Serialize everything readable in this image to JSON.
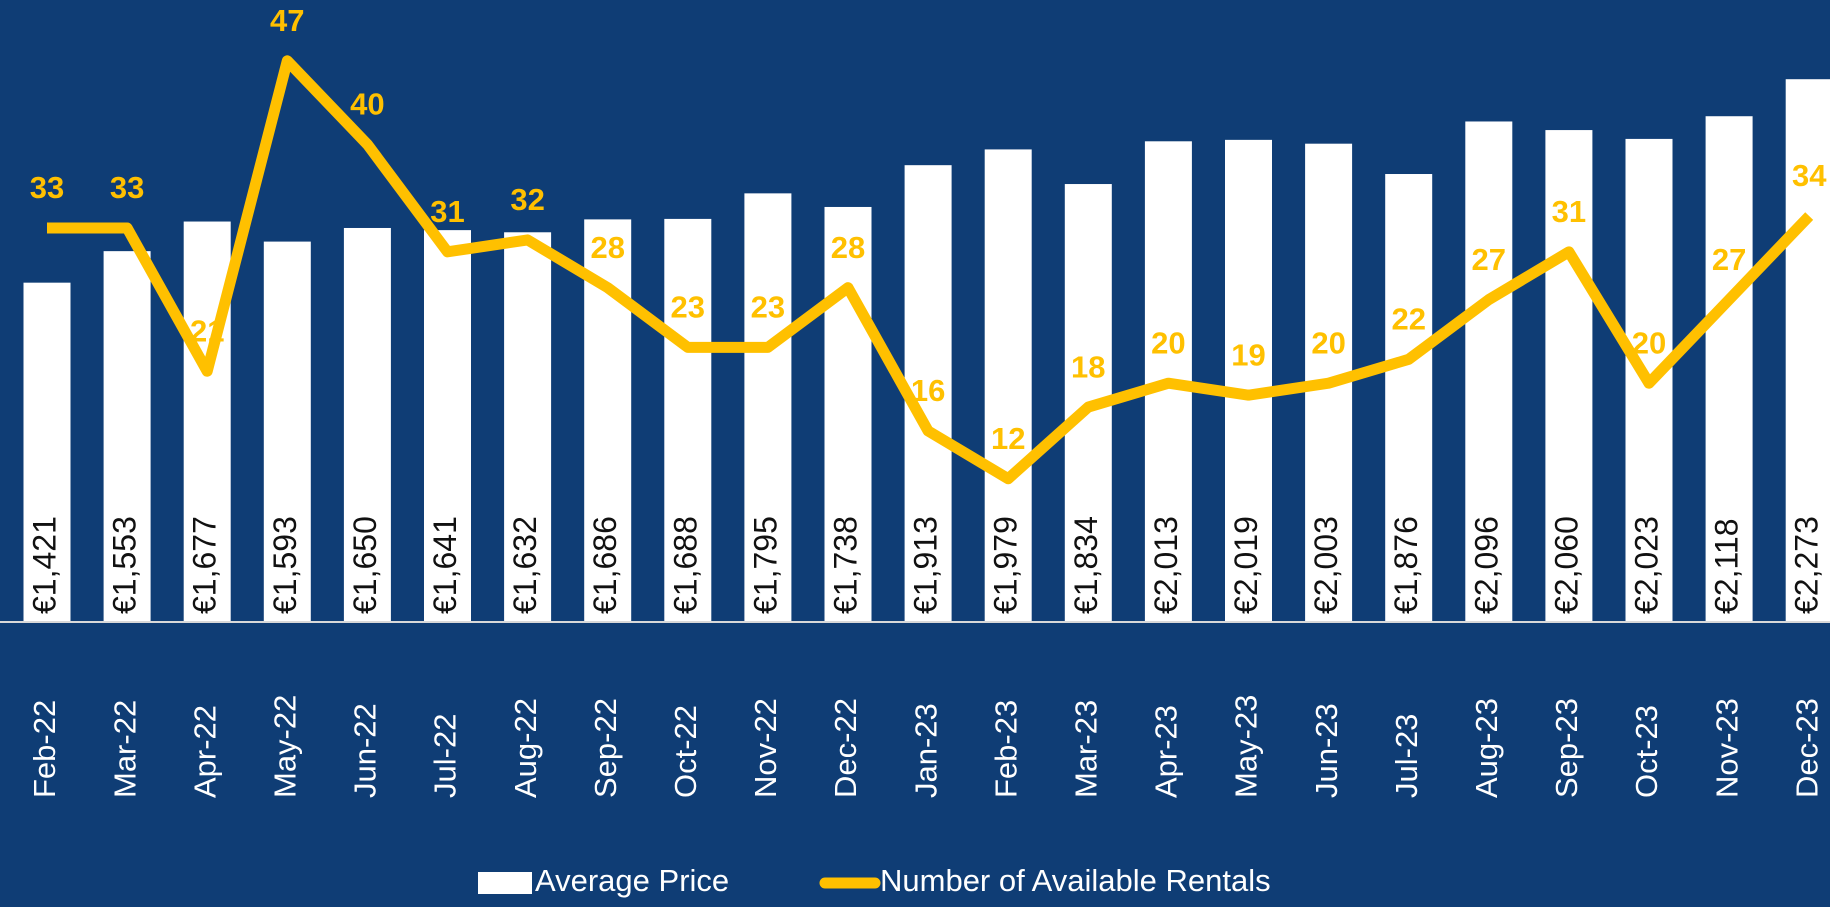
{
  "chart_data": {
    "type": "bar-line",
    "categories": [
      "Feb-22",
      "Mar-22",
      "Apr-22",
      "May-22",
      "Jun-22",
      "Jul-22",
      "Aug-22",
      "Sep-22",
      "Oct-22",
      "Nov-22",
      "Dec-22",
      "Jan-23",
      "Feb-23",
      "Mar-23",
      "Apr-23",
      "May-23",
      "Jun-23",
      "Jul-23",
      "Aug-23",
      "Sep-23",
      "Oct-23",
      "Nov-23",
      "Dec-23"
    ],
    "series": [
      {
        "name": "Average Price",
        "type": "bar",
        "color": "#ffffff",
        "values": [
          1421,
          1553,
          1677,
          1593,
          1650,
          1641,
          1632,
          1686,
          1688,
          1795,
          1738,
          1913,
          1979,
          1834,
          2013,
          2019,
          2003,
          1876,
          2096,
          2060,
          2023,
          2118,
          2273
        ],
        "value_labels": [
          "€1,421",
          "€1,553",
          "€1,677",
          "€1,593",
          "€1,650",
          "€1,641",
          "€1,632",
          "€1,686",
          "€1,688",
          "€1,795",
          "€1,738",
          "€1,913",
          "€1,979",
          "€1,834",
          "€2,013",
          "€2,019",
          "€2,003",
          "€1,876",
          "€2,096",
          "€2,060",
          "€2,023",
          "€2,118",
          "€2,273"
        ]
      },
      {
        "name": "Number of Available Rentals",
        "type": "line",
        "color": "#ffc000",
        "axis": "y2",
        "values": [
          33,
          33,
          21,
          47,
          40,
          31,
          32,
          28,
          23,
          23,
          28,
          16,
          12,
          18,
          20,
          19,
          20,
          22,
          27,
          31,
          20,
          27,
          34
        ]
      }
    ],
    "ylim": [
      0,
      2500
    ],
    "y2lim": [
      0,
      50
    ],
    "legend": "bottom"
  }
}
